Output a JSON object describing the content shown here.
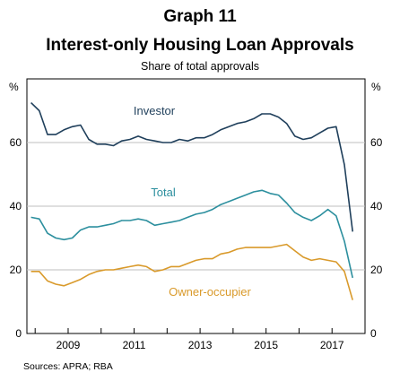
{
  "header": {
    "graph_label": "Graph 11",
    "title": "Interest-only Housing Loan Approvals",
    "subtitle": "Share of total approvals"
  },
  "source": "Sources: APRA; RBA",
  "colors": {
    "investor": "#1f3f5b",
    "total": "#2c8f9e",
    "owner": "#d99a2b",
    "grid": "#bfbfbf",
    "axis": "#000000"
  },
  "chart_data": {
    "type": "line",
    "unit_left": "%",
    "unit_right": "%",
    "ylim": [
      0,
      80
    ],
    "y_ticks": [
      0,
      20,
      40,
      60
    ],
    "x_tick_labels": [
      "2009",
      "2011",
      "2013",
      "2015",
      "2017"
    ],
    "x_ticks": [
      2009,
      2011,
      2013,
      2015,
      2017
    ],
    "xlim": [
      2007.75,
      2018.0
    ],
    "grid": "horizontal",
    "series_labels_on_chart": true,
    "x": [
      2007.875,
      2008.125,
      2008.375,
      2008.625,
      2008.875,
      2009.125,
      2009.375,
      2009.625,
      2009.875,
      2010.125,
      2010.375,
      2010.625,
      2010.875,
      2011.125,
      2011.375,
      2011.625,
      2011.875,
      2012.125,
      2012.375,
      2012.625,
      2012.875,
      2013.125,
      2013.375,
      2013.625,
      2013.875,
      2014.125,
      2014.375,
      2014.625,
      2014.875,
      2015.125,
      2015.375,
      2015.625,
      2015.875,
      2016.125,
      2016.375,
      2016.625,
      2016.875,
      2017.125,
      2017.375,
      2017.625
    ],
    "series": [
      {
        "name": "Investor",
        "values": [
          72.5,
          70,
          62.5,
          62.5,
          64,
          65,
          65.5,
          61,
          59.5,
          59.5,
          59,
          60.5,
          61,
          62,
          61,
          60.5,
          60,
          60,
          61,
          60.5,
          61.5,
          61.5,
          62.5,
          64,
          65,
          66,
          66.5,
          67.5,
          69,
          69,
          68,
          66,
          62,
          61,
          61.5,
          63,
          64.5,
          65,
          53,
          32
        ]
      },
      {
        "name": "Total",
        "values": [
          36.5,
          36,
          31.5,
          30,
          29.5,
          30,
          32.5,
          33.5,
          33.5,
          34,
          34.5,
          35.5,
          35.5,
          36,
          35.5,
          34,
          34.5,
          35,
          35.5,
          36.5,
          37.5,
          38,
          39,
          40.5,
          41.5,
          42.5,
          43.5,
          44.5,
          45,
          44,
          43.5,
          41,
          38,
          36.5,
          35.5,
          37,
          39,
          37,
          29,
          17.5
        ]
      },
      {
        "name": "Owner-occupier",
        "values": [
          19.5,
          19.5,
          16.5,
          15.5,
          15,
          16,
          17,
          18.5,
          19.5,
          20,
          20,
          20.5,
          21,
          21.5,
          21,
          19.5,
          20,
          21,
          21,
          22,
          23,
          23.5,
          23.5,
          25,
          25.5,
          26.5,
          27,
          27,
          27,
          27,
          27.5,
          28,
          26,
          24,
          23,
          23.5,
          23,
          22.5,
          19.5,
          10.5
        ]
      }
    ]
  }
}
